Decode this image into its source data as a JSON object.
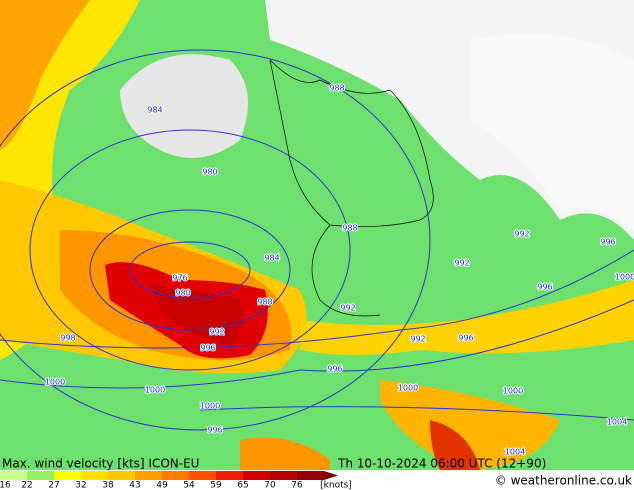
{
  "map": {
    "isobar_labels": [
      "984",
      "980",
      "976",
      "980",
      "984",
      "988",
      "988",
      "988",
      "992",
      "996",
      "998",
      "992",
      "992",
      "996",
      "992",
      "992",
      "996",
      "1000",
      "996",
      "996",
      "1000",
      "1000",
      "1000",
      "996",
      "1000",
      "1000",
      "1004",
      "1004"
    ],
    "footer": {
      "title": "Max. wind velocity [kts] ICON-EU",
      "datetime": "Th 10-10-2024 06:00 UTC (12+90)",
      "credit": "© weatheronline.co.uk"
    },
    "legend": {
      "labels": [
        "16",
        "22",
        "27",
        "32",
        "38",
        "43",
        "49",
        "54",
        "59",
        "65",
        "70",
        "76"
      ],
      "unit": "[knots]"
    }
  }
}
